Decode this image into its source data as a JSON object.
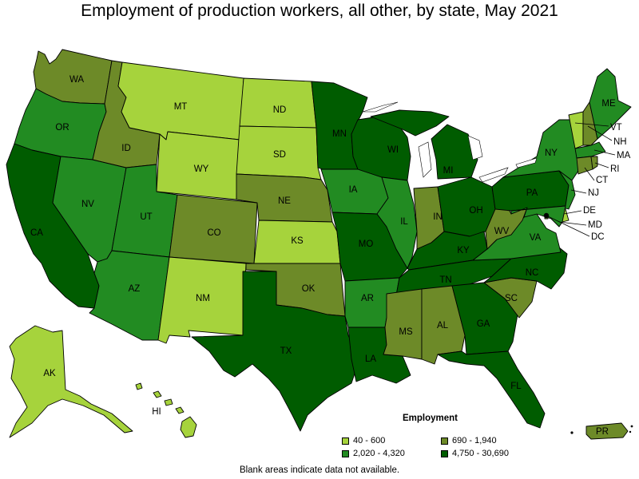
{
  "title": "Employment of production workers, all other, by state, May 2021",
  "legend": {
    "title": "Employment",
    "items": [
      {
        "label": "40 - 600",
        "color": "#a6d33c"
      },
      {
        "label": "690 - 1,940",
        "color": "#6d8a28"
      },
      {
        "label": "2,020 - 4,320",
        "color": "#228b22"
      },
      {
        "label": "4,750 - 30,690",
        "color": "#005c00"
      }
    ]
  },
  "footnote": "Blank areas indicate data not available.",
  "states": {
    "WA": 1,
    "OR": 2,
    "CA": 3,
    "NV": 2,
    "ID": 1,
    "MT": 0,
    "WY": 0,
    "UT": 2,
    "AZ": 2,
    "CO": 1,
    "NM": 0,
    "ND": 0,
    "SD": 0,
    "NE": 1,
    "KS": 0,
    "OK": 1,
    "TX": 3,
    "MN": 3,
    "IA": 2,
    "MO": 3,
    "AR": 2,
    "LA": 3,
    "WI": 3,
    "IL": 2,
    "MI": 3,
    "IN": 1,
    "OH": 3,
    "KY": 3,
    "TN": 3,
    "MS": 1,
    "AL": 1,
    "GA": 3,
    "FL": 3,
    "SC": 1,
    "NC": 3,
    "VA": 2,
    "WV": 1,
    "PA": 3,
    "NY": 2,
    "ME": 2,
    "VT": 0,
    "NH": 1,
    "MA": 2,
    "CT": 1,
    "RI": 1,
    "NJ": 2,
    "DE": 0,
    "MD": 2,
    "DC": 0,
    "AK": 0,
    "HI": 0,
    "PR": 1
  }
}
